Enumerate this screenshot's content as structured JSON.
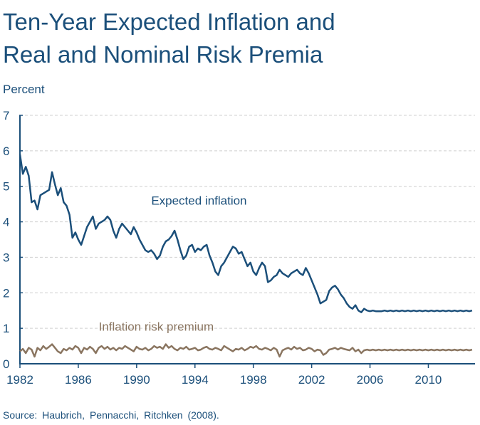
{
  "title_line1": "Ten-Year Expected Inflation and",
  "title_line2": "Real and Nominal Risk Premia",
  "units_label": "Percent",
  "source": "Source: Haubrich, Pennacchi, Ritchken (2008).",
  "colors": {
    "text": "#1b4f7a",
    "expected": "#1b4f7a",
    "premium": "#8a7560",
    "grid": "#cfcfcf",
    "axis": "#1b4f7a"
  },
  "chart_data": {
    "type": "line",
    "title": "Ten-Year Expected Inflation and Real and Nominal Risk Premia",
    "xlabel": "",
    "ylabel": "Percent",
    "xlim": [
      1982,
      2013.2
    ],
    "ylim": [
      0,
      7
    ],
    "yticks": [
      0,
      1,
      2,
      3,
      4,
      5,
      6,
      7
    ],
    "xticks": [
      1982,
      1986,
      1990,
      1994,
      1998,
      2002,
      2006,
      2010
    ],
    "grid": true,
    "series": [
      {
        "name": "Expected inflation",
        "label_pos": [
          1991,
          4.6
        ],
        "x": [
          1982.0,
          1982.2,
          1982.4,
          1982.6,
          1982.8,
          1983.0,
          1983.2,
          1983.4,
          1983.6,
          1983.8,
          1984.0,
          1984.2,
          1984.4,
          1984.6,
          1984.8,
          1985.0,
          1985.2,
          1985.4,
          1985.6,
          1985.8,
          1986.0,
          1986.2,
          1986.4,
          1986.6,
          1986.8,
          1987.0,
          1987.2,
          1987.4,
          1987.6,
          1987.8,
          1988.0,
          1988.2,
          1988.4,
          1988.6,
          1988.8,
          1989.0,
          1989.2,
          1989.4,
          1989.6,
          1989.8,
          1990.0,
          1990.2,
          1990.4,
          1990.6,
          1990.8,
          1991.0,
          1991.2,
          1991.4,
          1991.6,
          1991.8,
          1992.0,
          1992.2,
          1992.4,
          1992.6,
          1992.8,
          1993.0,
          1993.2,
          1993.4,
          1993.6,
          1993.8,
          1994.0,
          1994.2,
          1994.4,
          1994.6,
          1994.8,
          1995.0,
          1995.2,
          1995.4,
          1995.6,
          1995.8,
          1996.0,
          1996.2,
          1996.4,
          1996.6,
          1996.8,
          1997.0,
          1997.2,
          1997.4,
          1997.6,
          1997.8,
          1998.0,
          1998.2,
          1998.4,
          1998.6,
          1998.8,
          1999.0,
          1999.2,
          1999.4,
          1999.6,
          1999.8,
          2000.0,
          2000.2,
          2000.4,
          2000.6,
          2000.8,
          2001.0,
          2001.2,
          2001.4,
          2001.6,
          2001.8,
          2002.0,
          2002.2,
          2002.4,
          2002.6,
          2002.8,
          2003.0,
          2003.2,
          2003.4,
          2003.6,
          2003.8,
          2004.0,
          2004.2,
          2004.4,
          2004.6,
          2004.8,
          2005.0,
          2005.2,
          2005.4,
          2005.6,
          2005.8,
          2006.0,
          2006.2,
          2006.4,
          2006.6,
          2006.8,
          2007.0,
          2007.2,
          2007.4,
          2007.6,
          2007.8,
          2008.0,
          2008.2,
          2008.4,
          2008.6,
          2008.8,
          2009.0,
          2009.2,
          2009.4,
          2009.6,
          2009.8,
          2010.0,
          2010.2,
          2010.4,
          2010.6,
          2010.8,
          2011.0,
          2011.2,
          2011.4,
          2011.6,
          2011.8,
          2012.0,
          2012.2,
          2012.4,
          2012.6,
          2012.8,
          2013.0
        ],
        "values": [
          5.9,
          5.35,
          5.55,
          5.3,
          4.55,
          4.6,
          4.35,
          4.75,
          4.8,
          4.85,
          4.9,
          5.4,
          5.05,
          4.75,
          4.95,
          4.55,
          4.45,
          4.2,
          3.55,
          3.7,
          3.5,
          3.35,
          3.6,
          3.85,
          4.0,
          4.15,
          3.8,
          3.95,
          4.0,
          4.05,
          4.15,
          4.05,
          3.75,
          3.55,
          3.8,
          3.95,
          3.85,
          3.75,
          3.65,
          3.85,
          3.7,
          3.5,
          3.35,
          3.2,
          3.15,
          3.2,
          3.1,
          2.95,
          3.05,
          3.3,
          3.45,
          3.5,
          3.6,
          3.75,
          3.5,
          3.2,
          2.95,
          3.05,
          3.3,
          3.35,
          3.15,
          3.25,
          3.2,
          3.3,
          3.35,
          3.05,
          2.85,
          2.6,
          2.5,
          2.75,
          2.85,
          3.0,
          3.15,
          3.3,
          3.25,
          3.1,
          3.15,
          2.95,
          2.75,
          2.85,
          2.6,
          2.5,
          2.7,
          2.85,
          2.75,
          2.3,
          2.35,
          2.45,
          2.5,
          2.65,
          2.55,
          2.5,
          2.45,
          2.55,
          2.6,
          2.65,
          2.55,
          2.5,
          2.7,
          2.55,
          2.35,
          2.15,
          1.95,
          1.7,
          1.75,
          1.8,
          2.05,
          2.15,
          2.2,
          2.1,
          1.95,
          1.85,
          1.7,
          1.6,
          1.55,
          1.65,
          1.5,
          1.45,
          1.55,
          1.5,
          1.48,
          1.5,
          1.48,
          1.48,
          1.48,
          1.5,
          1.48,
          1.5,
          1.48,
          1.5,
          1.48,
          1.5,
          1.48,
          1.5,
          1.48,
          1.5,
          1.48,
          1.5,
          1.48,
          1.5,
          1.48,
          1.5,
          1.48,
          1.5,
          1.48,
          1.5,
          1.48,
          1.5,
          1.48,
          1.5,
          1.48,
          1.5,
          1.48,
          1.5,
          1.48,
          1.5
        ]
      },
      {
        "name": "Inflation risk premium",
        "label_pos": [
          1987.4,
          1.05
        ],
        "x": [
          1982.0,
          1982.2,
          1982.4,
          1982.6,
          1982.8,
          1983.0,
          1983.2,
          1983.4,
          1983.6,
          1983.8,
          1984.0,
          1984.2,
          1984.4,
          1984.6,
          1984.8,
          1985.0,
          1985.2,
          1985.4,
          1985.6,
          1985.8,
          1986.0,
          1986.2,
          1986.4,
          1986.6,
          1986.8,
          1987.0,
          1987.2,
          1987.4,
          1987.6,
          1987.8,
          1988.0,
          1988.2,
          1988.4,
          1988.6,
          1988.8,
          1989.0,
          1989.2,
          1989.4,
          1989.6,
          1989.8,
          1990.0,
          1990.2,
          1990.4,
          1990.6,
          1990.8,
          1991.0,
          1991.2,
          1991.4,
          1991.6,
          1991.8,
          1992.0,
          1992.2,
          1992.4,
          1992.6,
          1992.8,
          1993.0,
          1993.2,
          1993.4,
          1993.6,
          1993.8,
          1994.0,
          1994.2,
          1994.4,
          1994.6,
          1994.8,
          1995.0,
          1995.2,
          1995.4,
          1995.6,
          1995.8,
          1996.0,
          1996.2,
          1996.4,
          1996.6,
          1996.8,
          1997.0,
          1997.2,
          1997.4,
          1997.6,
          1997.8,
          1998.0,
          1998.2,
          1998.4,
          1998.6,
          1998.8,
          1999.0,
          1999.2,
          1999.4,
          1999.6,
          1999.8,
          2000.0,
          2000.2,
          2000.4,
          2000.6,
          2000.8,
          2001.0,
          2001.2,
          2001.4,
          2001.6,
          2001.8,
          2002.0,
          2002.2,
          2002.4,
          2002.6,
          2002.8,
          2003.0,
          2003.2,
          2003.4,
          2003.6,
          2003.8,
          2004.0,
          2004.2,
          2004.4,
          2004.6,
          2004.8,
          2005.0,
          2005.2,
          2005.4,
          2005.6,
          2005.8,
          2006.0,
          2006.2,
          2006.4,
          2006.6,
          2006.8,
          2007.0,
          2007.2,
          2007.4,
          2007.6,
          2007.8,
          2008.0,
          2008.2,
          2008.4,
          2008.6,
          2008.8,
          2009.0,
          2009.2,
          2009.4,
          2009.6,
          2009.8,
          2010.0,
          2010.2,
          2010.4,
          2010.6,
          2010.8,
          2011.0,
          2011.2,
          2011.4,
          2011.6,
          2011.8,
          2012.0,
          2012.2,
          2012.4,
          2012.6,
          2012.8,
          2013.0
        ],
        "values": [
          0.35,
          0.42,
          0.3,
          0.45,
          0.4,
          0.2,
          0.45,
          0.38,
          0.5,
          0.42,
          0.48,
          0.55,
          0.45,
          0.35,
          0.3,
          0.42,
          0.38,
          0.45,
          0.4,
          0.5,
          0.45,
          0.3,
          0.45,
          0.4,
          0.48,
          0.42,
          0.3,
          0.45,
          0.5,
          0.42,
          0.48,
          0.4,
          0.45,
          0.38,
          0.45,
          0.42,
          0.5,
          0.45,
          0.4,
          0.35,
          0.48,
          0.42,
          0.4,
          0.45,
          0.38,
          0.42,
          0.5,
          0.45,
          0.48,
          0.42,
          0.55,
          0.45,
          0.5,
          0.42,
          0.38,
          0.45,
          0.42,
          0.48,
          0.4,
          0.42,
          0.45,
          0.38,
          0.4,
          0.45,
          0.48,
          0.42,
          0.4,
          0.45,
          0.42,
          0.38,
          0.5,
          0.45,
          0.4,
          0.35,
          0.42,
          0.4,
          0.45,
          0.38,
          0.42,
          0.48,
          0.45,
          0.5,
          0.42,
          0.4,
          0.45,
          0.42,
          0.38,
          0.45,
          0.4,
          0.2,
          0.38,
          0.42,
          0.45,
          0.4,
          0.48,
          0.42,
          0.45,
          0.38,
          0.4,
          0.45,
          0.42,
          0.35,
          0.4,
          0.38,
          0.25,
          0.3,
          0.4,
          0.42,
          0.45,
          0.4,
          0.45,
          0.42,
          0.4,
          0.38,
          0.45,
          0.35,
          0.4,
          0.3,
          0.38,
          0.4,
          0.38,
          0.4,
          0.38,
          0.4,
          0.38,
          0.4,
          0.38,
          0.4,
          0.38,
          0.4,
          0.38,
          0.4,
          0.38,
          0.4,
          0.38,
          0.4,
          0.38,
          0.4,
          0.38,
          0.4,
          0.38,
          0.4,
          0.38,
          0.4,
          0.38,
          0.4,
          0.38,
          0.4,
          0.38,
          0.4,
          0.38,
          0.4,
          0.38,
          0.4,
          0.38,
          0.4
        ]
      }
    ]
  }
}
